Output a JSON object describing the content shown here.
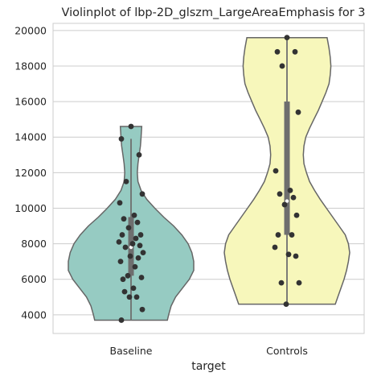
{
  "chart_data": {
    "type": "violin",
    "title": "Violinplot of lbp-2D_glszm_LargeAreaEmphasis for 3",
    "xlabel": "target",
    "ylabel": "",
    "categories": [
      "Baseline",
      "Controls"
    ],
    "colors": {
      "Baseline": "#96cbc2",
      "Controls": "#f7f7bb",
      "outline": "#666666",
      "points": "#333333",
      "grid": "#cccccc",
      "box": "#6e6e6e",
      "median": "#ffffff"
    },
    "ylim": [
      2950,
      20400
    ],
    "yticks": [
      4000,
      6000,
      8000,
      10000,
      12000,
      14000,
      16000,
      18000,
      20000
    ],
    "grid": true,
    "series": [
      {
        "category": "Baseline",
        "min": 3700,
        "max": 14600,
        "q1": 6200,
        "median": 7800,
        "q3": 9500,
        "whisker_low": 3700,
        "whisker_high": 13900,
        "density": [
          [
            3700,
            0.58
          ],
          [
            4000,
            0.6
          ],
          [
            4500,
            0.64
          ],
          [
            5000,
            0.71
          ],
          [
            5500,
            0.82
          ],
          [
            6000,
            0.93
          ],
          [
            6500,
            1.0
          ],
          [
            7000,
            1.0
          ],
          [
            7500,
            0.97
          ],
          [
            8000,
            0.91
          ],
          [
            8500,
            0.81
          ],
          [
            9000,
            0.68
          ],
          [
            9500,
            0.52
          ],
          [
            10000,
            0.38
          ],
          [
            10500,
            0.25
          ],
          [
            11000,
            0.16
          ],
          [
            11500,
            0.11
          ],
          [
            12000,
            0.1
          ],
          [
            12500,
            0.11
          ],
          [
            13000,
            0.13
          ],
          [
            13500,
            0.15
          ],
          [
            14000,
            0.16
          ],
          [
            14600,
            0.17
          ]
        ],
        "points": [
          14600,
          13900,
          13000,
          11500,
          10800,
          10300,
          9600,
          9400,
          9200,
          8900,
          8500,
          8500,
          8300,
          8100,
          8000,
          7900,
          7800,
          7500,
          7300,
          7200,
          7000,
          6700,
          6200,
          6100,
          6000,
          5500,
          5300,
          5000,
          5000,
          4300,
          3700
        ]
      },
      {
        "category": "Controls",
        "min": 4600,
        "max": 19600,
        "q1": 8500,
        "median": 10400,
        "q3": 16000,
        "whisker_low": 4600,
        "whisker_high": 19600,
        "density": [
          [
            4600,
            0.77
          ],
          [
            5000,
            0.81
          ],
          [
            5500,
            0.86
          ],
          [
            6000,
            0.91
          ],
          [
            6500,
            0.95
          ],
          [
            7000,
            0.98
          ],
          [
            7500,
            1.0
          ],
          [
            8000,
            0.98
          ],
          [
            8500,
            0.93
          ],
          [
            9000,
            0.83
          ],
          [
            9500,
            0.73
          ],
          [
            10000,
            0.63
          ],
          [
            10500,
            0.53
          ],
          [
            11000,
            0.44
          ],
          [
            11500,
            0.36
          ],
          [
            12000,
            0.31
          ],
          [
            12500,
            0.27
          ],
          [
            13000,
            0.26
          ],
          [
            13500,
            0.27
          ],
          [
            14000,
            0.3
          ],
          [
            14500,
            0.36
          ],
          [
            15000,
            0.43
          ],
          [
            15500,
            0.5
          ],
          [
            16000,
            0.56
          ],
          [
            16500,
            0.62
          ],
          [
            17000,
            0.67
          ],
          [
            17500,
            0.69
          ],
          [
            18000,
            0.7
          ],
          [
            18500,
            0.69
          ],
          [
            19000,
            0.67
          ],
          [
            19600,
            0.64
          ]
        ],
        "points": [
          19600,
          18800,
          18800,
          18000,
          15400,
          12100,
          11000,
          10800,
          10600,
          10200,
          9600,
          8500,
          8500,
          7800,
          7400,
          7300,
          5800,
          5800,
          4600
        ]
      }
    ]
  }
}
